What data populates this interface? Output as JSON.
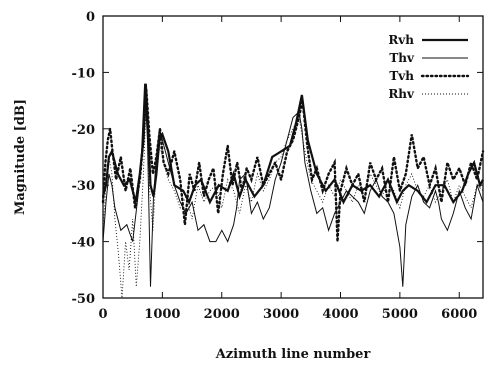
{
  "chart_data": {
    "type": "line",
    "title": "",
    "xlabel": "Azimuth line number",
    "ylabel": "Magnitude [dB]",
    "xlim": [
      0,
      6400
    ],
    "ylim": [
      -50,
      0
    ],
    "xticks": [
      0,
      1000,
      2000,
      3000,
      4000,
      5000,
      6000
    ],
    "xtick_labels": [
      "0",
      "1000",
      "2000",
      "3000",
      "4000",
      "5000",
      "6000"
    ],
    "yticks": [
      0,
      -10,
      -20,
      -30,
      -40,
      -50
    ],
    "ytick_labels": [
      "0",
      "-10",
      "-20",
      "-30",
      "-40",
      "-50"
    ],
    "grid": false,
    "legend_position": "top-right",
    "series": [
      {
        "name": "Rvh",
        "style": "thick-solid",
        "x": [
          0,
          50,
          100,
          150,
          250,
          350,
          450,
          550,
          620,
          680,
          720,
          760,
          800,
          850,
          900,
          950,
          1000,
          1100,
          1200,
          1350,
          1450,
          1550,
          1650,
          1800,
          1950,
          2100,
          2200,
          2300,
          2400,
          2550,
          2700,
          2850,
          3000,
          3150,
          3250,
          3350,
          3450,
          3600,
          3750,
          3900,
          4050,
          4200,
          4350,
          4500,
          4650,
          4800,
          4950,
          5050,
          5150,
          5300,
          5450,
          5600,
          5750,
          5900,
          6050,
          6150,
          6250,
          6350,
          6400
        ],
        "y": [
          -32,
          -30,
          -25,
          -24,
          -28,
          -30,
          -29,
          -33,
          -28,
          -22,
          -12,
          -20,
          -30,
          -32,
          -28,
          -22,
          -21,
          -24,
          -30,
          -31,
          -33,
          -30,
          -29,
          -33,
          -30,
          -31,
          -28,
          -32,
          -29,
          -32,
          -30,
          -25,
          -24,
          -23,
          -19,
          -14,
          -22,
          -28,
          -31,
          -29,
          -33,
          -30,
          -31,
          -30,
          -32,
          -29,
          -33,
          -31,
          -30,
          -31,
          -33,
          -30,
          -30,
          -33,
          -31,
          -28,
          -26,
          -30,
          -29
        ]
      },
      {
        "name": "Thv",
        "style": "thin-solid",
        "x": [
          0,
          50,
          100,
          150,
          200,
          300,
          400,
          500,
          600,
          650,
          700,
          750,
          800,
          850,
          900,
          950,
          1000,
          1100,
          1200,
          1300,
          1400,
          1500,
          1600,
          1700,
          1800,
          1900,
          2000,
          2100,
          2200,
          2250,
          2300,
          2400,
          2500,
          2600,
          2700,
          2800,
          2900,
          3000,
          3100,
          3200,
          3300,
          3350,
          3400,
          3500,
          3600,
          3700,
          3800,
          3900,
          4000,
          4100,
          4200,
          4300,
          4400,
          4500,
          4600,
          4700,
          4800,
          4900,
          5000,
          5050,
          5100,
          5200,
          5300,
          5400,
          5500,
          5600,
          5650,
          5700,
          5800,
          5900,
          6000,
          6100,
          6200,
          6300,
          6400
        ],
        "y": [
          -40,
          -33,
          -28,
          -30,
          -34,
          -38,
          -37,
          -40,
          -31,
          -24,
          -12,
          -22,
          -48,
          -32,
          -25,
          -20,
          -22,
          -26,
          -30,
          -33,
          -35,
          -33,
          -38,
          -37,
          -40,
          -40,
          -38,
          -40,
          -37,
          -34,
          -29,
          -28,
          -35,
          -33,
          -36,
          -34,
          -29,
          -26,
          -22,
          -18,
          -17,
          -20,
          -26,
          -31,
          -35,
          -34,
          -38,
          -35,
          -33,
          -31,
          -32,
          -33,
          -35,
          -31,
          -29,
          -32,
          -33,
          -35,
          -41,
          -48,
          -37,
          -32,
          -30,
          -33,
          -34,
          -31,
          -33,
          -36,
          -38,
          -35,
          -31,
          -34,
          -36,
          -30,
          -33
        ]
      },
      {
        "name": "Tvh",
        "style": "dotted-thick",
        "x": [
          0,
          40,
          80,
          120,
          160,
          220,
          300,
          380,
          460,
          540,
          620,
          680,
          730,
          780,
          840,
          900,
          960,
          1020,
          1100,
          1200,
          1300,
          1380,
          1460,
          1540,
          1620,
          1700,
          1780,
          1860,
          1940,
          2020,
          2100,
          2180,
          2260,
          2340,
          2420,
          2500,
          2600,
          2700,
          2800,
          2900,
          3000,
          3100,
          3200,
          3300,
          3360,
          3440,
          3520,
          3600,
          3700,
          3800,
          3900,
          3950,
          4000,
          4100,
          4200,
          4300,
          4400,
          4500,
          4600,
          4700,
          4800,
          4900,
          5000,
          5100,
          5200,
          5300,
          5400,
          5500,
          5600,
          5700,
          5800,
          5900,
          6000,
          6100,
          6200,
          6300,
          6400
        ],
        "y": [
          -33,
          -26,
          -22,
          -20,
          -24,
          -29,
          -25,
          -31,
          -27,
          -34,
          -29,
          -22,
          -13,
          -21,
          -28,
          -25,
          -20,
          -26,
          -28,
          -24,
          -29,
          -37,
          -28,
          -31,
          -26,
          -32,
          -29,
          -27,
          -35,
          -28,
          -23,
          -30,
          -26,
          -31,
          -27,
          -29,
          -25,
          -30,
          -28,
          -26,
          -29,
          -24,
          -22,
          -18,
          -15,
          -23,
          -29,
          -27,
          -31,
          -28,
          -26,
          -40,
          -31,
          -27,
          -30,
          -28,
          -33,
          -26,
          -29,
          -27,
          -33,
          -25,
          -31,
          -28,
          -21,
          -27,
          -25,
          -30,
          -27,
          -33,
          -26,
          -29,
          -27,
          -30,
          -26,
          -29,
          -24
        ]
      },
      {
        "name": "Rhv",
        "style": "fine-dotted",
        "x": [
          0,
          50,
          100,
          150,
          200,
          260,
          320,
          380,
          440,
          500,
          560,
          620,
          680,
          730,
          780,
          840,
          900,
          960,
          1020,
          1100,
          1200,
          1300,
          1400,
          1500,
          1600,
          1700,
          1800,
          1900,
          2000,
          2100,
          2200,
          2300,
          2400,
          2500,
          2600,
          2700,
          2800,
          2900,
          3000,
          3100,
          3200,
          3300,
          3400,
          3500,
          3600,
          3700,
          3800,
          3900,
          4000,
          4100,
          4200,
          4300,
          4400,
          4500,
          4600,
          4700,
          4800,
          4900,
          5000,
          5100,
          5200,
          5300,
          5400,
          5500,
          5600,
          5700,
          5800,
          5900,
          6000,
          6100,
          6200,
          6300,
          6400
        ],
        "y": [
          -38,
          -30,
          -25,
          -28,
          -36,
          -42,
          -50,
          -40,
          -45,
          -36,
          -48,
          -40,
          -28,
          -15,
          -30,
          -38,
          -27,
          -23,
          -26,
          -29,
          -31,
          -34,
          -32,
          -36,
          -30,
          -33,
          -31,
          -30,
          -34,
          -29,
          -31,
          -35,
          -30,
          -33,
          -28,
          -31,
          -29,
          -26,
          -25,
          -22,
          -20,
          -18,
          -24,
          -29,
          -31,
          -33,
          -30,
          -32,
          -29,
          -31,
          -33,
          -30,
          -31,
          -28,
          -30,
          -32,
          -29,
          -31,
          -34,
          -30,
          -28,
          -31,
          -32,
          -30,
          -33,
          -31,
          -29,
          -33,
          -30,
          -32,
          -34,
          -30,
          -31
        ]
      }
    ]
  }
}
